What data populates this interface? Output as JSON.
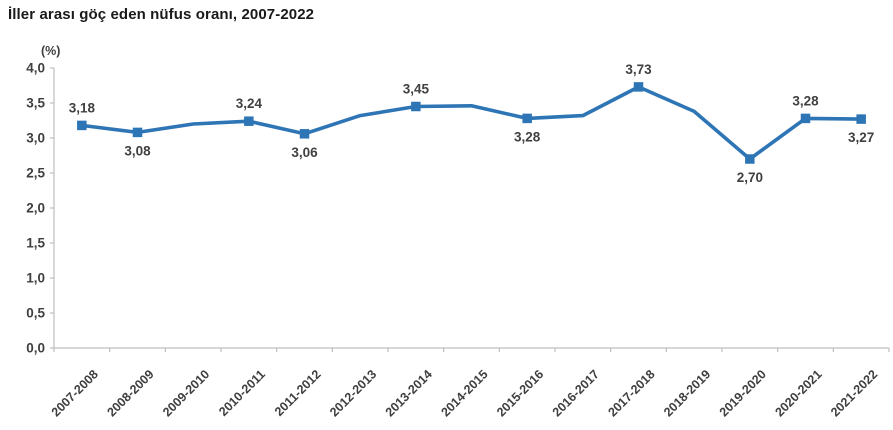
{
  "title": "İller arası göç eden nüfus oranı, 2007-2022",
  "chart_data": {
    "type": "line",
    "title": "İller arası göç eden nüfus oranı, 2007-2022",
    "unit_label": "(%)",
    "xlabel": "",
    "ylabel": "(%)",
    "ylim": [
      0,
      4
    ],
    "y_tick_step": 0.5,
    "y_tick_labels": [
      "4,0",
      "3,5",
      "3,0",
      "2,5",
      "2,0",
      "1,5",
      "1,0",
      "0,5",
      "0,0"
    ],
    "grid": false,
    "legend": false,
    "categories": [
      "2007-2008",
      "2008-2009",
      "2009-2010",
      "2010-2011",
      "2011-2012",
      "2012-2013",
      "2013-2014",
      "2014-2015",
      "2015-2016",
      "2016-2017",
      "2017-2018",
      "2018-2019",
      "2019-2020",
      "2020-2021",
      "2021-2022"
    ],
    "series": [
      {
        "name": "İller arası göç eden nüfus oranı (%)",
        "values": [
          3.18,
          3.08,
          3.2,
          3.24,
          3.06,
          3.32,
          3.45,
          3.46,
          3.28,
          3.32,
          3.73,
          3.38,
          2.7,
          3.28,
          3.27
        ]
      }
    ],
    "points": [
      {
        "category": "2007-2008",
        "value": 3.18,
        "label": "3,18",
        "label_pos": "above"
      },
      {
        "category": "2008-2009",
        "value": 3.08,
        "label": "3,08",
        "label_pos": "below"
      },
      {
        "category": "2009-2010",
        "value": 3.2,
        "label": null,
        "label_pos": null
      },
      {
        "category": "2010-2011",
        "value": 3.24,
        "label": "3,24",
        "label_pos": "above"
      },
      {
        "category": "2011-2012",
        "value": 3.06,
        "label": "3,06",
        "label_pos": "below"
      },
      {
        "category": "2012-2013",
        "value": 3.32,
        "label": null,
        "label_pos": null
      },
      {
        "category": "2013-2014",
        "value": 3.45,
        "label": "3,45",
        "label_pos": "above"
      },
      {
        "category": "2014-2015",
        "value": 3.46,
        "label": null,
        "label_pos": null
      },
      {
        "category": "2015-2016",
        "value": 3.28,
        "label": "3,28",
        "label_pos": "below"
      },
      {
        "category": "2016-2017",
        "value": 3.32,
        "label": null,
        "label_pos": null
      },
      {
        "category": "2017-2018",
        "value": 3.73,
        "label": "3,73",
        "label_pos": "above"
      },
      {
        "category": "2018-2019",
        "value": 3.38,
        "label": null,
        "label_pos": null
      },
      {
        "category": "2019-2020",
        "value": 2.7,
        "label": "2,70",
        "label_pos": "below"
      },
      {
        "category": "2020-2021",
        "value": 3.28,
        "label": "3,28",
        "label_pos": "above"
      },
      {
        "category": "2021-2022",
        "value": 3.27,
        "label": "3,27",
        "label_pos": "below"
      }
    ],
    "colors": {
      "line": "#2E75B6",
      "marker": "#2E75B6",
      "data_label": "#404040",
      "axis_line": "#BFBFBF",
      "tick_label": "#3F3F3F",
      "title": "#1A1A1A"
    }
  }
}
